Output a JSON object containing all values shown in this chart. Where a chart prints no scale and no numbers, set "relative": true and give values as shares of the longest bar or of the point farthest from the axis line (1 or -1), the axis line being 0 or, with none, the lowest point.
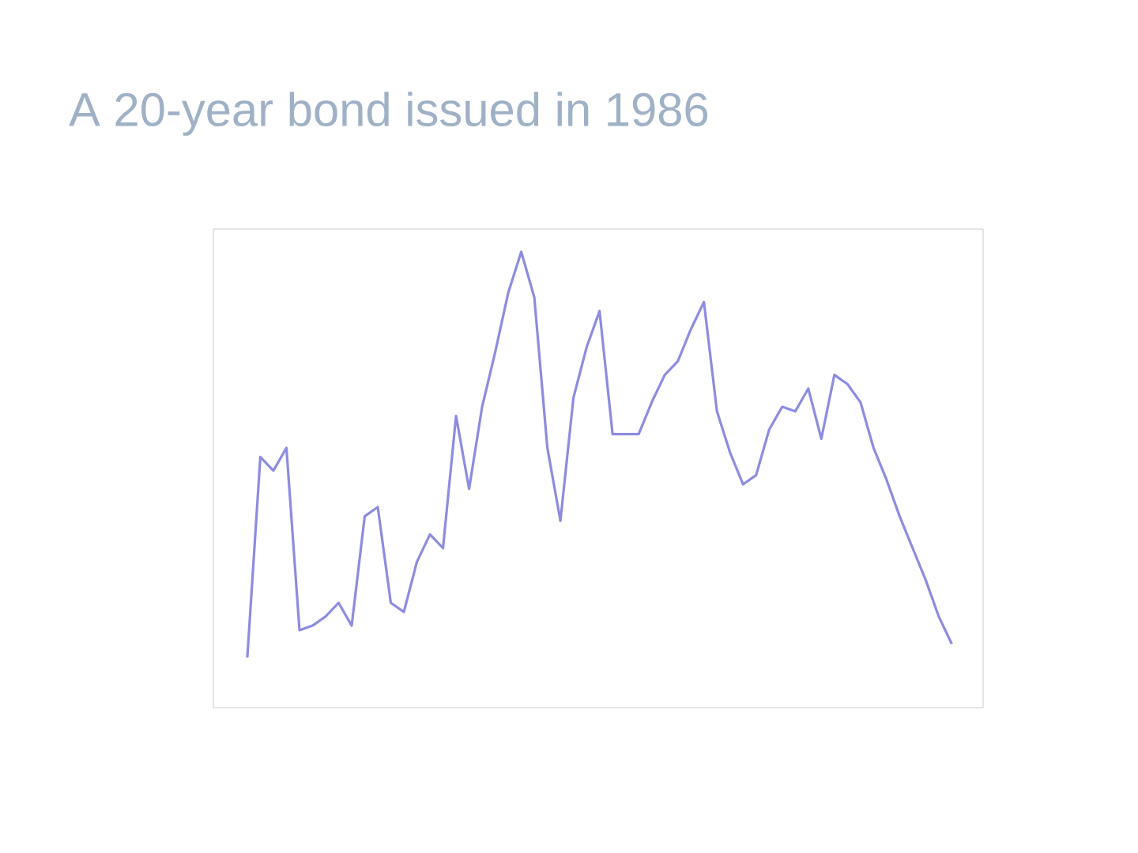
{
  "chart_data": {
    "type": "line",
    "title": "A 20-year bond issued in 1986",
    "relative": true,
    "color": "#8c8ce0",
    "categories": [
      null,
      null,
      null,
      null,
      null,
      null,
      null,
      null,
      null,
      null,
      null,
      null,
      null,
      null,
      null,
      null,
      null,
      null,
      null,
      null,
      null,
      null,
      null,
      null,
      null,
      null,
      null,
      null,
      null,
      null,
      null,
      null,
      null,
      null,
      null,
      null,
      null,
      null,
      null,
      null,
      null,
      null,
      null,
      null,
      null,
      null,
      null,
      null,
      null,
      null,
      null,
      null,
      null,
      null,
      null
    ],
    "values": [
      0.11,
      0.55,
      0.52,
      0.57,
      0.17,
      0.18,
      0.2,
      0.23,
      0.18,
      0.42,
      0.44,
      0.23,
      0.21,
      0.32,
      0.38,
      0.35,
      0.64,
      0.48,
      0.66,
      0.78,
      0.91,
      1.0,
      0.9,
      0.57,
      0.41,
      0.68,
      0.79,
      0.87,
      0.6,
      0.6,
      0.6,
      0.67,
      0.73,
      0.76,
      0.83,
      0.89,
      0.65,
      0.56,
      0.49,
      0.51,
      0.61,
      0.66,
      0.65,
      0.7,
      0.59,
      0.73,
      0.71,
      0.67,
      0.57,
      0.5,
      0.42,
      0.35,
      0.28,
      0.2,
      0.14
    ]
  }
}
